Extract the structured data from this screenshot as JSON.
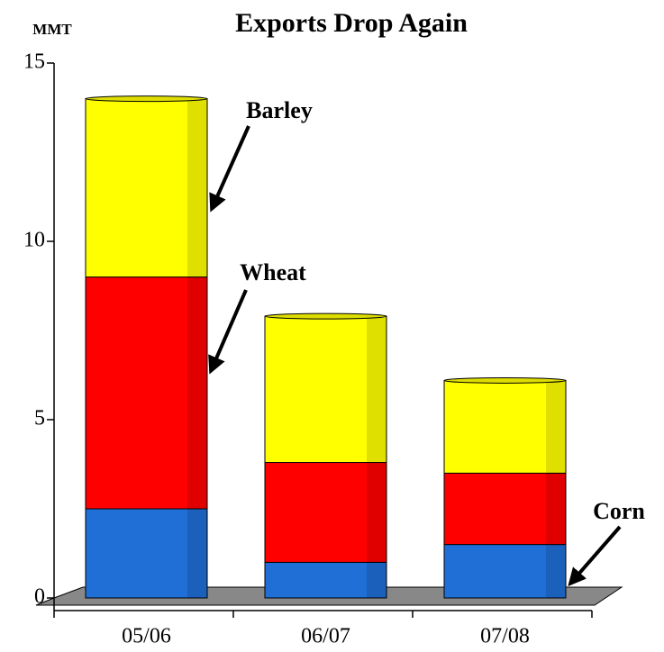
{
  "chart_data": {
    "type": "bar",
    "stacked": true,
    "title": "Exports Drop Again",
    "y_label": "MMT",
    "categories": [
      "05/06",
      "06/07",
      "07/08"
    ],
    "series": [
      {
        "name": "Corn",
        "color": "#1f6fd6",
        "values": [
          2.5,
          1.0,
          1.5
        ]
      },
      {
        "name": "Wheat",
        "color": "#ff0000",
        "values": [
          6.5,
          2.8,
          2.0
        ]
      },
      {
        "name": "Barley",
        "color": "#ffff00",
        "values": [
          5.0,
          4.1,
          2.6
        ]
      }
    ],
    "ylim": [
      0,
      15
    ],
    "yticks": [
      0,
      5,
      10,
      15
    ]
  }
}
